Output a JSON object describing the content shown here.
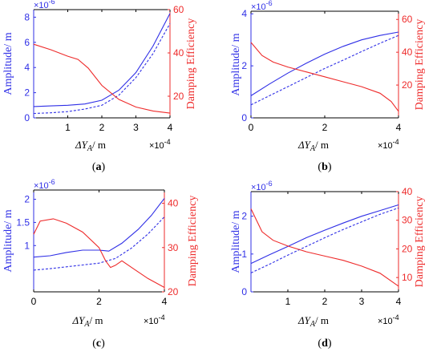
{
  "colors": {
    "amplitude": "#2f2fe6",
    "damping": "#ee2b2b",
    "axis": "#000000"
  },
  "common": {
    "left_label": "Amplitude/ m",
    "right_label": "Damping Efficiency",
    "left_exponent": "×10",
    "left_exponent_power": "-6",
    "x_label_prefix": "ΔY",
    "x_label_sub": "A",
    "x_label_suffix": "/ m",
    "x_exponent": "×10",
    "x_exponent_power": "-4"
  },
  "chart_data": [
    {
      "panel": "(a)",
      "type": "line",
      "xlim": [
        0,
        4
      ],
      "ylim_left": [
        0,
        8.6
      ],
      "ylim_right": [
        10,
        60
      ],
      "x_ticks": [
        "1",
        "2",
        "3",
        "4"
      ],
      "left_ticks": [
        "0",
        "2",
        "4",
        "6",
        "8"
      ],
      "right_ticks": [
        "20",
        "40",
        "60"
      ],
      "series": [
        {
          "axis": "left",
          "style": "solid",
          "color": "blue",
          "x": [
            0,
            0.5,
            1,
            1.5,
            2,
            2.5,
            3,
            3.5,
            4
          ],
          "y": [
            0.9,
            0.95,
            1.0,
            1.1,
            1.4,
            2.2,
            3.6,
            5.7,
            8.3
          ]
        },
        {
          "axis": "left",
          "style": "dashed",
          "color": "blue",
          "x": [
            0,
            0.5,
            1,
            1.5,
            2,
            2.5,
            3,
            3.5,
            4
          ],
          "y": [
            0.35,
            0.4,
            0.5,
            0.7,
            1.0,
            1.8,
            3.2,
            5.1,
            7.5
          ]
        },
        {
          "axis": "right",
          "style": "solid",
          "color": "red",
          "x": [
            0,
            0.5,
            1,
            1.3,
            1.6,
            2,
            2.5,
            3,
            3.5,
            4
          ],
          "y": [
            44,
            41.5,
            38.5,
            37,
            33,
            25,
            18.5,
            15,
            13.2,
            12.2
          ]
        }
      ]
    },
    {
      "panel": "(b)",
      "type": "line",
      "xlim": [
        0,
        4
      ],
      "ylim_left": [
        0,
        4.1
      ],
      "ylim_right": [
        0,
        65
      ],
      "x_ticks": [
        "0",
        "2",
        "4"
      ],
      "left_ticks": [
        "0",
        "2",
        "4"
      ],
      "right_ticks": [
        "20",
        "40",
        "60"
      ],
      "series": [
        {
          "axis": "left",
          "style": "solid",
          "color": "blue",
          "x": [
            0,
            0.5,
            1,
            1.5,
            2,
            2.5,
            3,
            3.5,
            4
          ],
          "y": [
            0.85,
            1.3,
            1.72,
            2.1,
            2.45,
            2.75,
            3.0,
            3.17,
            3.3
          ]
        },
        {
          "axis": "left",
          "style": "dashed",
          "color": "blue",
          "x": [
            0,
            0.5,
            1,
            1.5,
            2,
            2.5,
            3,
            3.5,
            4
          ],
          "y": [
            0.5,
            0.85,
            1.2,
            1.55,
            1.9,
            2.22,
            2.55,
            2.87,
            3.17
          ]
        },
        {
          "axis": "right",
          "style": "solid",
          "color": "red",
          "x": [
            0,
            0.3,
            0.6,
            1,
            1.5,
            2,
            2.5,
            3,
            3.5,
            3.8,
            4
          ],
          "y": [
            46,
            38,
            34,
            31,
            28,
            25,
            22,
            19,
            15,
            10,
            4
          ]
        }
      ]
    },
    {
      "panel": "(c)",
      "type": "line",
      "xlim": [
        0,
        4
      ],
      "ylim_left": [
        0,
        2.2
      ],
      "ylim_right": [
        20,
        43
      ],
      "x_ticks": [
        "0",
        "2",
        "4"
      ],
      "left_ticks": [
        "1",
        "1.5",
        "2"
      ],
      "right_ticks": [
        "20",
        "30",
        "40"
      ],
      "series": [
        {
          "axis": "left",
          "style": "solid",
          "color": "blue",
          "x": [
            0,
            0.5,
            1,
            1.5,
            2,
            2.3,
            2.7,
            3.2,
            3.6,
            4
          ],
          "y": [
            0.75,
            0.78,
            0.85,
            0.9,
            0.9,
            0.88,
            1.05,
            1.35,
            1.65,
            2.02
          ]
        },
        {
          "axis": "left",
          "style": "dashed",
          "color": "blue",
          "x": [
            0,
            0.5,
            1,
            1.5,
            2,
            2.5,
            3,
            3.5,
            4
          ],
          "y": [
            0.47,
            0.5,
            0.54,
            0.58,
            0.62,
            0.72,
            0.95,
            1.25,
            1.62
          ]
        },
        {
          "axis": "right",
          "style": "solid",
          "color": "red",
          "x": [
            0,
            0.2,
            0.6,
            1,
            1.5,
            2,
            2.2,
            2.35,
            2.5,
            2.7,
            3.1,
            3.5,
            4
          ],
          "y": [
            33,
            36,
            36.5,
            35.5,
            33.5,
            30,
            27,
            25.5,
            26,
            27,
            25,
            23,
            21
          ]
        }
      ]
    },
    {
      "panel": "(d)",
      "type": "line",
      "xlim": [
        0,
        4
      ],
      "ylim_left": [
        0,
        2.65
      ],
      "ylim_right": [
        5,
        40
      ],
      "x_ticks": [
        "1",
        "2",
        "3",
        "4"
      ],
      "left_ticks": [
        "0",
        "1",
        "2"
      ],
      "right_ticks": [
        "10",
        "20",
        "30",
        "40"
      ],
      "series": [
        {
          "axis": "left",
          "style": "solid",
          "color": "blue",
          "x": [
            0,
            0.5,
            1,
            1.5,
            2,
            2.5,
            3,
            3.5,
            4
          ],
          "y": [
            0.75,
            0.98,
            1.2,
            1.43,
            1.63,
            1.82,
            2.0,
            2.15,
            2.3
          ]
        },
        {
          "axis": "left",
          "style": "dashed",
          "color": "blue",
          "x": [
            0,
            0.5,
            1,
            1.5,
            2,
            2.5,
            3,
            3.5,
            4
          ],
          "y": [
            0.5,
            0.73,
            0.97,
            1.2,
            1.43,
            1.65,
            1.85,
            2.05,
            2.22
          ]
        },
        {
          "axis": "right",
          "style": "solid",
          "color": "red",
          "x": [
            0,
            0.3,
            0.6,
            1,
            1.5,
            2,
            2.5,
            3,
            3.5,
            4
          ],
          "y": [
            34,
            26,
            23,
            21,
            19,
            17.5,
            16,
            14,
            11.5,
            7
          ]
        }
      ]
    }
  ]
}
